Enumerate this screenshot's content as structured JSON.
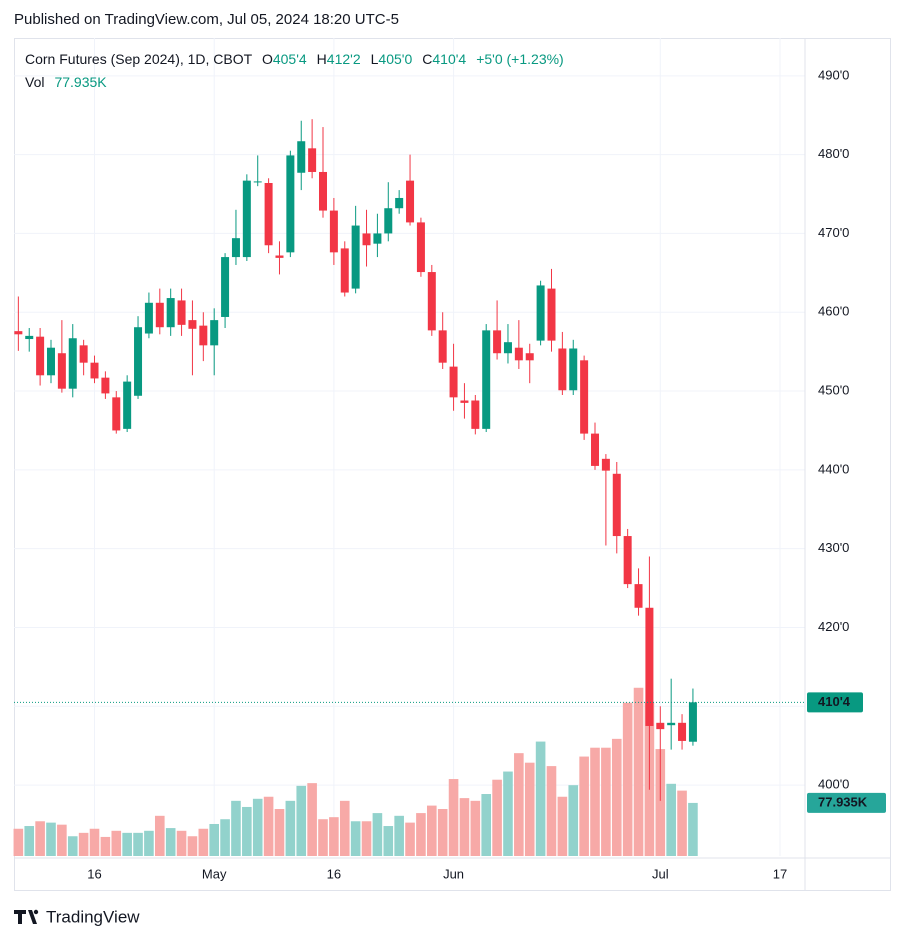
{
  "chart_data": {
    "type": "candlestick",
    "published": "Published on TradingView.com, Jul 05, 2024 18:20 UTC-5",
    "brand": "TradingView",
    "title": "Corn Futures (Sep 2024), 1D, CBOT",
    "open_letter": "O",
    "open_label": "405'4",
    "high_letter": "H",
    "high_label": "412'2",
    "low_letter": "L",
    "low_label": "405'0",
    "close_letter": "C",
    "close_label": "410'4",
    "change_label": "+5'0 (+1.23%)",
    "volume_name": "Vol",
    "last_volume_label": "77.935K",
    "up_color": "#089981",
    "down_color": "#f23645",
    "volume_up_color": "#92d2cc",
    "volume_down_color": "#f7a9a7",
    "grid": true,
    "open": [
      457.6,
      456.6,
      456.9,
      452.0,
      454.8,
      450.3,
      455.8,
      453.6,
      451.7,
      449.2,
      445.2,
      449.4,
      457.3,
      461.2,
      458.1,
      461.5,
      459.0,
      458.3,
      455.8,
      459.4,
      467.0,
      467.0,
      476.5,
      476.4,
      467.2,
      467.6,
      477.7,
      480.8,
      477.8,
      472.9,
      468.1,
      463.0,
      470.0,
      468.7,
      470.0,
      473.2,
      476.7,
      471.4,
      465.1,
      457.7,
      453.1,
      448.8,
      448.8,
      445.2,
      457.7,
      454.8,
      455.5,
      454.8,
      456.4,
      463.0,
      455.4,
      450.1,
      453.9,
      444.6,
      441.4,
      439.5,
      431.6,
      425.5,
      422.5,
      407.9,
      407.6,
      407.9,
      405.5
    ],
    "high": [
      462.0,
      458.0,
      458.0,
      456.5,
      459.0,
      458.5,
      456.5,
      454.5,
      452.5,
      450.0,
      452.0,
      459.5,
      462.5,
      463.0,
      463.0,
      463.0,
      461.5,
      460.0,
      460.5,
      467.5,
      473.0,
      477.5,
      479.9,
      477.0,
      469.0,
      480.5,
      484.3,
      484.5,
      483.5,
      474.5,
      469.0,
      473.5,
      473.0,
      472.5,
      476.5,
      475.5,
      480.0,
      472.0,
      466.0,
      460.0,
      456.0,
      451.0,
      449.5,
      458.5,
      461.5,
      458.5,
      459.0,
      456.0,
      464.0,
      465.5,
      457.5,
      456.5,
      454.5,
      446.0,
      442.0,
      441.0,
      432.5,
      427.5,
      429.0,
      410.0,
      413.5,
      409.0,
      412.25
    ],
    "low": [
      455.1,
      455.0,
      450.7,
      451.0,
      449.8,
      449.2,
      452.0,
      451.0,
      449.0,
      444.6,
      444.8,
      449.0,
      456.7,
      457.2,
      457.0,
      457.0,
      452.0,
      453.8,
      452.0,
      458.0,
      466.0,
      466.5,
      476.0,
      467.5,
      464.8,
      467.0,
      475.5,
      477.0,
      472.0,
      466.0,
      462.0,
      462.4,
      465.8,
      467.0,
      469.0,
      472.5,
      471.0,
      464.5,
      457.0,
      452.8,
      447.5,
      446.5,
      444.5,
      444.8,
      454.0,
      453.5,
      452.8,
      451.0,
      455.8,
      455.0,
      449.5,
      449.5,
      443.8,
      440.0,
      430.4,
      429.4,
      425.0,
      421.5,
      399.4,
      398.0,
      404.5,
      404.5,
      405.0
    ],
    "close": [
      457.2,
      457.0,
      452.0,
      455.5,
      450.3,
      456.7,
      453.6,
      451.6,
      449.7,
      445.0,
      451.2,
      458.1,
      461.2,
      458.1,
      461.8,
      458.4,
      457.9,
      455.8,
      459.0,
      467.0,
      469.4,
      476.7,
      476.6,
      468.5,
      466.9,
      479.9,
      481.7,
      477.8,
      472.9,
      467.6,
      462.5,
      471.0,
      468.5,
      470.0,
      473.2,
      474.5,
      471.4,
      465.1,
      457.7,
      453.6,
      449.2,
      448.5,
      445.2,
      457.7,
      454.8,
      456.2,
      453.9,
      453.9,
      463.4,
      456.4,
      450.1,
      455.4,
      444.6,
      440.5,
      439.9,
      431.6,
      425.5,
      422.5,
      407.5,
      407.1,
      407.9,
      405.6,
      410.5
    ],
    "volume": [
      40000,
      44000,
      51000,
      49000,
      46000,
      29000,
      34000,
      40000,
      28000,
      37000,
      34000,
      34000,
      37000,
      59000,
      41000,
      37000,
      29000,
      40000,
      47000,
      54000,
      81000,
      72000,
      84000,
      87000,
      69000,
      81000,
      103000,
      107000,
      54000,
      57000,
      81000,
      51000,
      51000,
      63000,
      44000,
      59000,
      49000,
      63000,
      74000,
      69000,
      113000,
      85000,
      81000,
      91000,
      112000,
      124000,
      151000,
      137000,
      168000,
      132000,
      87000,
      104000,
      146000,
      159000,
      159000,
      172000,
      225000,
      247000,
      225000,
      157000,
      106000,
      96000,
      77935
    ],
    "ylim": [
      391,
      494.8
    ],
    "yticks": [
      {
        "value": 400,
        "label": "400'0"
      },
      {
        "value": 410,
        "label": "410'0"
      },
      {
        "value": 420,
        "label": "420'0"
      },
      {
        "value": 430,
        "label": "430'0"
      },
      {
        "value": 440,
        "label": "440'0"
      },
      {
        "value": 450,
        "label": "450'0"
      },
      {
        "value": 460,
        "label": "460'0"
      },
      {
        "value": 470,
        "label": "470'0"
      },
      {
        "value": 480,
        "label": "480'0"
      },
      {
        "value": 490,
        "label": "490'0"
      }
    ],
    "y2lim": [
      0,
      1201000
    ],
    "xlim": [
      -0.4,
      72.3
    ],
    "xticks": [
      {
        "value": 7,
        "label": "16"
      },
      {
        "value": 18,
        "label": "May"
      },
      {
        "value": 29,
        "label": "16"
      },
      {
        "value": 40,
        "label": "Jun"
      },
      {
        "value": 59,
        "label": "Jul"
      },
      {
        "value": 70,
        "label": "17"
      }
    ]
  }
}
